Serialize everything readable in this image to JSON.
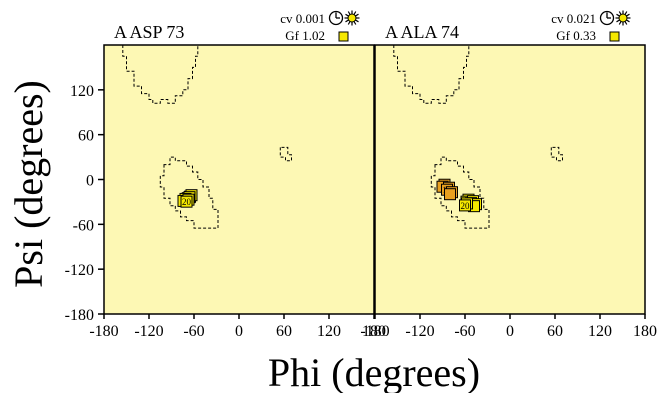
{
  "colors": {
    "background": "#ffffff",
    "plot_bg": "#fdf8b4",
    "contour": "#000000",
    "marker_yellow": "#f5e800",
    "marker_orange": "#e8a020"
  },
  "axis_labels": {
    "x": "Phi (degrees)",
    "y": "Psi (degrees)"
  },
  "chart_data": [
    {
      "type": "scatter",
      "title": "A ASP 73",
      "legend": {
        "cv_label": "cv",
        "cv_value": "0.001",
        "gf_label": "Gf",
        "gf_value": "1.02",
        "icons": [
          "clock-icon",
          "sun-icon",
          "yellow-square-icon"
        ]
      },
      "xlim": [
        -180,
        180
      ],
      "ylim": [
        -180,
        180
      ],
      "x_ticks": [
        "-180",
        "-120",
        "-60",
        "0",
        "60",
        "120",
        "180"
      ],
      "y_ticks": [
        "120",
        "60",
        "0",
        "-60",
        "-120",
        "-180"
      ],
      "points": [
        {
          "label": "",
          "phi": -66,
          "psi": -25,
          "fill": "yellow"
        },
        {
          "label": "",
          "phi": -69,
          "psi": -27,
          "fill": "yellow"
        },
        {
          "label": "",
          "phi": -64,
          "psi": -23,
          "fill": "yellow"
        },
        {
          "label": "",
          "phi": -72,
          "psi": -28,
          "fill": "yellow"
        },
        {
          "label": "20",
          "phi": -68,
          "psi": -29,
          "fill": "yellow"
        }
      ]
    },
    {
      "type": "scatter",
      "title": "A ALA 74",
      "legend": {
        "cv_label": "cv",
        "cv_value": "0.021",
        "gf_label": "Gf",
        "gf_value": "0.33",
        "icons": [
          "clock-icon",
          "sun-icon",
          "yellow-square-icon"
        ]
      },
      "xlim": [
        -180,
        180
      ],
      "ylim": [
        -180,
        180
      ],
      "x_ticks": [
        "-180",
        "-120",
        "-60",
        "0",
        "60",
        "120",
        "180"
      ],
      "y_ticks": [],
      "points": [
        {
          "label": "",
          "phi": -88,
          "psi": -9,
          "fill": "orange"
        },
        {
          "label": "19",
          "phi": -82,
          "psi": -13,
          "fill": "orange"
        },
        {
          "label": "",
          "phi": -78,
          "psi": -19,
          "fill": "orange"
        },
        {
          "label": "",
          "phi": -56,
          "psi": -29,
          "fill": "yellow"
        },
        {
          "label": "",
          "phi": -50,
          "psi": -31,
          "fill": "yellow"
        },
        {
          "label": "",
          "phi": -46,
          "psi": -35,
          "fill": "yellow"
        },
        {
          "label": "20",
          "phi": -58,
          "psi": -34,
          "fill": "yellow"
        }
      ]
    }
  ]
}
